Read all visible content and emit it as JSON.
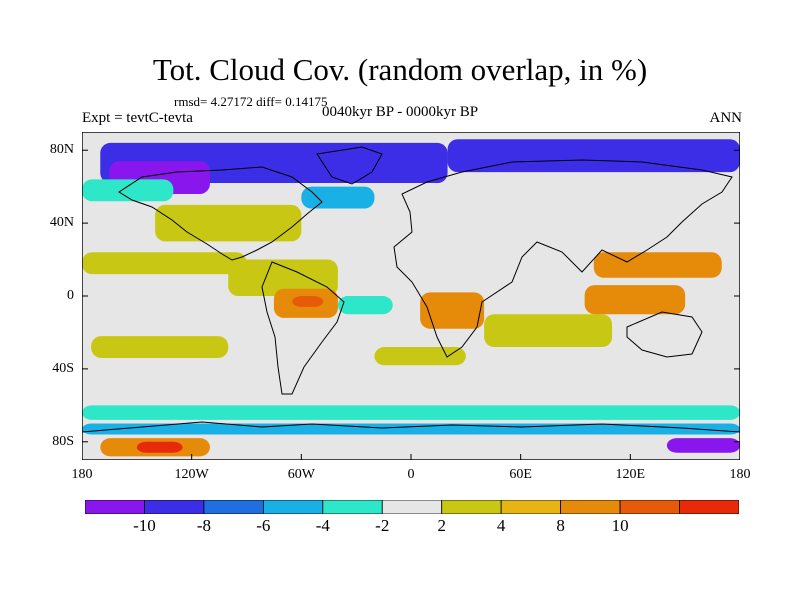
{
  "title": "Tot. Cloud Cov. (random overlap, in %)",
  "stats": "rmsd= 4.27172 diff= 0.14175",
  "experiment": "Expt = tevtC-tevta",
  "period": "0040kyr BP - 0000kyr BP",
  "season": "ANN",
  "axes": {
    "lon_ticks": [
      {
        "value": -180,
        "label": "180"
      },
      {
        "value": -120,
        "label": "120W"
      },
      {
        "value": -60,
        "label": "60W"
      },
      {
        "value": 0,
        "label": "0"
      },
      {
        "value": 60,
        "label": "60E"
      },
      {
        "value": 120,
        "label": "120E"
      },
      {
        "value": 180,
        "label": "180"
      }
    ],
    "lat_ticks": [
      {
        "value": 80,
        "label": "80N"
      },
      {
        "value": 40,
        "label": "40N"
      },
      {
        "value": 0,
        "label": "0"
      },
      {
        "value": -40,
        "label": "40S"
      },
      {
        "value": -80,
        "label": "80S"
      }
    ],
    "lon_range": [
      -180,
      180
    ],
    "lat_range": [
      -90,
      90
    ]
  },
  "colorbar": {
    "colors": [
      "#8a16ee",
      "#3b2ee6",
      "#1f6fe0",
      "#19b0e6",
      "#2ee6c8",
      "#e6e6e6",
      "#c8c814",
      "#e6b414",
      "#e68a0a",
      "#e65a0a",
      "#e62a0a"
    ],
    "labels": [
      {
        "boundary": 1,
        "text": "-10"
      },
      {
        "boundary": 2,
        "text": "-8"
      },
      {
        "boundary": 3,
        "text": "-6"
      },
      {
        "boundary": 4,
        "text": "-4"
      },
      {
        "boundary": 5,
        "text": "-2"
      },
      {
        "boundary": 6,
        "text": "2"
      },
      {
        "boundary": 7,
        "text": "4"
      },
      {
        "boundary": 8,
        "text": "8"
      },
      {
        "boundary": 9,
        "text": "10"
      }
    ]
  },
  "regions": [
    {
      "name": "arctic-north-atlantic-negative",
      "lon": [
        -170,
        20
      ],
      "lat": [
        62,
        84
      ],
      "color": "#3b2ee6"
    },
    {
      "name": "arctic-eurasia-negative",
      "lon": [
        20,
        180
      ],
      "lat": [
        68,
        86
      ],
      "color": "#3b2ee6"
    },
    {
      "name": "north-america-purple",
      "lon": [
        -165,
        -110
      ],
      "lat": [
        56,
        74
      ],
      "color": "#8a16ee"
    },
    {
      "name": "north-pacific-cyan",
      "lon": [
        -180,
        -130
      ],
      "lat": [
        52,
        64
      ],
      "color": "#2ee6c8"
    },
    {
      "name": "north-atlantic-cyan",
      "lon": [
        -60,
        -20
      ],
      "lat": [
        48,
        60
      ],
      "color": "#19b0e6"
    },
    {
      "name": "north-pacific-yellow",
      "lon": [
        -140,
        -60
      ],
      "lat": [
        30,
        50
      ],
      "color": "#c8c814"
    },
    {
      "name": "tropical-pacific-yellow",
      "lon": [
        -180,
        -90
      ],
      "lat": [
        12,
        24
      ],
      "color": "#c8c814"
    },
    {
      "name": "asia-pacific-orange",
      "lon": [
        100,
        170
      ],
      "lat": [
        10,
        24
      ],
      "color": "#e68a0a"
    },
    {
      "name": "central-america-yellow",
      "lon": [
        -100,
        -40
      ],
      "lat": [
        0,
        20
      ],
      "color": "#c8c814"
    },
    {
      "name": "amazon-orange",
      "lon": [
        -75,
        -40
      ],
      "lat": [
        -12,
        4
      ],
      "color": "#e68a0a"
    },
    {
      "name": "amazon-red",
      "lon": [
        -65,
        -48
      ],
      "lat": [
        -6,
        0
      ],
      "color": "#e65a0a"
    },
    {
      "name": "africa-orange",
      "lon": [
        5,
        40
      ],
      "lat": [
        -18,
        2
      ],
      "color": "#e68a0a"
    },
    {
      "name": "indian-ocean-yellow",
      "lon": [
        40,
        110
      ],
      "lat": [
        -28,
        -10
      ],
      "color": "#c8c814"
    },
    {
      "name": "maritime-continent-orange",
      "lon": [
        95,
        150
      ],
      "lat": [
        -10,
        6
      ],
      "color": "#e68a0a"
    },
    {
      "name": "tropical-atlantic-cyan",
      "lon": [
        -40,
        -10
      ],
      "lat": [
        -10,
        0
      ],
      "color": "#2ee6c8"
    },
    {
      "name": "south-pacific-yellow",
      "lon": [
        -175,
        -100
      ],
      "lat": [
        -34,
        -22
      ],
      "color": "#c8c814"
    },
    {
      "name": "south-atlantic-yellow",
      "lon": [
        -20,
        30
      ],
      "lat": [
        -38,
        -28
      ],
      "color": "#c8c814"
    },
    {
      "name": "southern-ocean-cyan",
      "lon": [
        -180,
        180
      ],
      "lat": [
        -68,
        -60
      ],
      "color": "#2ee6c8"
    },
    {
      "name": "antarctic-coast-blue",
      "lon": [
        -180,
        180
      ],
      "lat": [
        -76,
        -70
      ],
      "color": "#19b0e6"
    },
    {
      "name": "antarctica-orange",
      "lon": [
        -170,
        -110
      ],
      "lat": [
        -88,
        -78
      ],
      "color": "#e68a0a"
    },
    {
      "name": "antarctica-red",
      "lon": [
        -150,
        -125
      ],
      "lat": [
        -86,
        -80
      ],
      "color": "#e62a0a"
    },
    {
      "name": "antarctica-purple",
      "lon": [
        140,
        180
      ],
      "lat": [
        -86,
        -78
      ],
      "color": "#8a16ee"
    }
  ]
}
